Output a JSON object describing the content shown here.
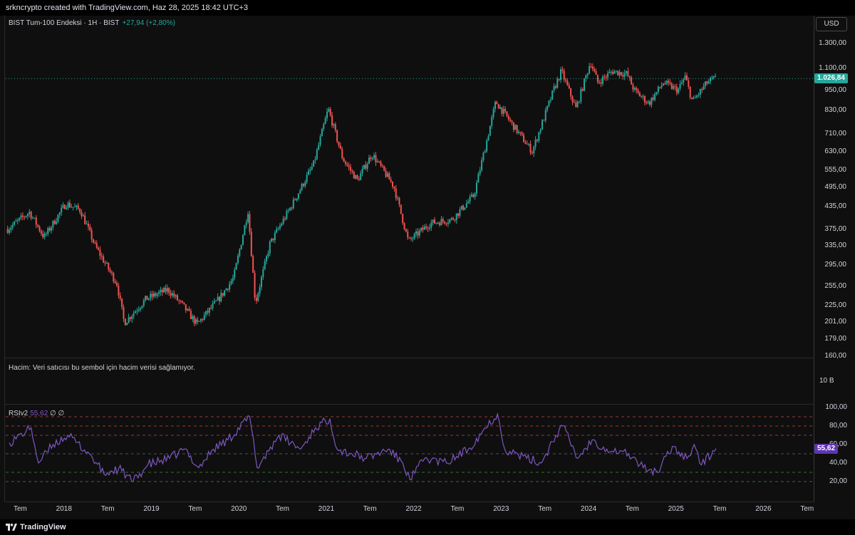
{
  "header": {
    "attribution": "srkncrypto created with TradingView.com, Haz 28, 2025 18:42 UTC+3"
  },
  "legend": {
    "symbol": "BIST Tum-100 Endeksi · 1H · BIST",
    "change": "+27,94 (+2,80%)"
  },
  "currency_button": "USD",
  "price_axis": {
    "ticks": [
      "1.300,00",
      "1.100,00",
      "950,00",
      "830,00",
      "710,00",
      "630,00",
      "555,00",
      "495,00",
      "435,00",
      "375,00",
      "335,00",
      "295,00",
      "255,00",
      "225,00",
      "201,00",
      "179,00",
      "160,00"
    ],
    "last_price_label": "1.026,84"
  },
  "volume_pane": {
    "message": "Hacim: Veri satıcısı bu sembol için hacim verisi sağlamıyor.",
    "tick": "10 B"
  },
  "rsi_pane": {
    "label": "RSIv2",
    "value": "55,62",
    "extra": "∅ ∅",
    "ticks": [
      "100,00",
      "80,00",
      "60,00",
      "40,00",
      "20,00"
    ],
    "last_value_label": "55,62"
  },
  "time_axis": [
    "Tem",
    "2018",
    "Tem",
    "2019",
    "Tem",
    "2020",
    "Tem",
    "2021",
    "Tem",
    "2022",
    "Tem",
    "2023",
    "Tem",
    "2024",
    "Tem",
    "2025",
    "Tem",
    "2026",
    "Tem"
  ],
  "footer": {
    "brand": "TradingView"
  },
  "colors": {
    "up": "#26a69a",
    "down": "#ef5350",
    "rsi": "#7e57c2",
    "last_price": "#26a69a",
    "background": "#0f0f0f"
  },
  "chart_data": [
    {
      "type": "candlestick",
      "title": "BIST Tum-100 Endeksi · 1H · BIST",
      "scale": "log",
      "y_axis_ticks": [
        1300,
        1100,
        950,
        830,
        710,
        630,
        555,
        495,
        435,
        375,
        335,
        295,
        255,
        225,
        201,
        179,
        160
      ],
      "last_price": 1026.84,
      "series_anchor_points": [
        {
          "x": "2017-05",
          "y": 375
        },
        {
          "x": "2017-08",
          "y": 420
        },
        {
          "x": "2017-10",
          "y": 355
        },
        {
          "x": "2018-01",
          "y": 445
        },
        {
          "x": "2018-03",
          "y": 425
        },
        {
          "x": "2018-05",
          "y": 335
        },
        {
          "x": "2018-08",
          "y": 260
        },
        {
          "x": "2018-09",
          "y": 200
        },
        {
          "x": "2018-12",
          "y": 235
        },
        {
          "x": "2019-03",
          "y": 250
        },
        {
          "x": "2019-05",
          "y": 225
        },
        {
          "x": "2019-07",
          "y": 198
        },
        {
          "x": "2019-10",
          "y": 235
        },
        {
          "x": "2019-12",
          "y": 270
        },
        {
          "x": "2020-02",
          "y": 425
        },
        {
          "x": "2020-03",
          "y": 228
        },
        {
          "x": "2020-05",
          "y": 340
        },
        {
          "x": "2020-08",
          "y": 440
        },
        {
          "x": "2020-11",
          "y": 580
        },
        {
          "x": "2021-01",
          "y": 840
        },
        {
          "x": "2021-03",
          "y": 600
        },
        {
          "x": "2021-05",
          "y": 520
        },
        {
          "x": "2021-07",
          "y": 620
        },
        {
          "x": "2021-10",
          "y": 500
        },
        {
          "x": "2021-12",
          "y": 345
        },
        {
          "x": "2022-03",
          "y": 390
        },
        {
          "x": "2022-06",
          "y": 400
        },
        {
          "x": "2022-09",
          "y": 470
        },
        {
          "x": "2022-12",
          "y": 880
        },
        {
          "x": "2023-03",
          "y": 720
        },
        {
          "x": "2023-05",
          "y": 630
        },
        {
          "x": "2023-08",
          "y": 960
        },
        {
          "x": "2023-09",
          "y": 1080
        },
        {
          "x": "2023-11",
          "y": 840
        },
        {
          "x": "2024-01",
          "y": 1150
        },
        {
          "x": "2024-02",
          "y": 1000
        },
        {
          "x": "2024-04",
          "y": 1080
        },
        {
          "x": "2024-06",
          "y": 1060
        },
        {
          "x": "2024-07",
          "y": 950
        },
        {
          "x": "2024-09",
          "y": 870
        },
        {
          "x": "2024-11",
          "y": 1000
        },
        {
          "x": "2025-01",
          "y": 950
        },
        {
          "x": "2025-02",
          "y": 1040
        },
        {
          "x": "2025-03",
          "y": 880
        },
        {
          "x": "2025-05",
          "y": 1000
        },
        {
          "x": "2025-06",
          "y": 1026.84
        }
      ]
    },
    {
      "type": "line",
      "title": "RSIv2",
      "ylim": [
        0,
        100
      ],
      "y_axis_ticks": [
        100,
        80,
        60,
        40,
        20
      ],
      "reference_lines": [
        90,
        80,
        70,
        50,
        30,
        20
      ],
      "last_value": 55.62,
      "series": [
        {
          "values": [
            {
              "x": "2017-05",
              "y": 62
            },
            {
              "x": "2017-08",
              "y": 78
            },
            {
              "x": "2017-09",
              "y": 40
            },
            {
              "x": "2017-11",
              "y": 60
            },
            {
              "x": "2018-01",
              "y": 70
            },
            {
              "x": "2018-04",
              "y": 50
            },
            {
              "x": "2018-06",
              "y": 28
            },
            {
              "x": "2018-08",
              "y": 34
            },
            {
              "x": "2018-10",
              "y": 20
            },
            {
              "x": "2018-12",
              "y": 38
            },
            {
              "x": "2019-03",
              "y": 45
            },
            {
              "x": "2019-05",
              "y": 55
            },
            {
              "x": "2019-07",
              "y": 35
            },
            {
              "x": "2019-09",
              "y": 55
            },
            {
              "x": "2019-11",
              "y": 65
            },
            {
              "x": "2020-02",
              "y": 90
            },
            {
              "x": "2020-03",
              "y": 35
            },
            {
              "x": "2020-06",
              "y": 70
            },
            {
              "x": "2020-09",
              "y": 55
            },
            {
              "x": "2020-11",
              "y": 78
            },
            {
              "x": "2021-01",
              "y": 88
            },
            {
              "x": "2021-02",
              "y": 55
            },
            {
              "x": "2021-04",
              "y": 50
            },
            {
              "x": "2021-06",
              "y": 45
            },
            {
              "x": "2021-09",
              "y": 55
            },
            {
              "x": "2021-11",
              "y": 40
            },
            {
              "x": "2021-12",
              "y": 22
            },
            {
              "x": "2022-02",
              "y": 45
            },
            {
              "x": "2022-05",
              "y": 40
            },
            {
              "x": "2022-08",
              "y": 55
            },
            {
              "x": "2022-10",
              "y": 75
            },
            {
              "x": "2022-12",
              "y": 93
            },
            {
              "x": "2023-01",
              "y": 55
            },
            {
              "x": "2023-04",
              "y": 45
            },
            {
              "x": "2023-06",
              "y": 40
            },
            {
              "x": "2023-08",
              "y": 70
            },
            {
              "x": "2023-09",
              "y": 80
            },
            {
              "x": "2023-11",
              "y": 45
            },
            {
              "x": "2024-01",
              "y": 65
            },
            {
              "x": "2024-03",
              "y": 55
            },
            {
              "x": "2024-06",
              "y": 50
            },
            {
              "x": "2024-08",
              "y": 35
            },
            {
              "x": "2024-10",
              "y": 30
            },
            {
              "x": "2024-12",
              "y": 58
            },
            {
              "x": "2025-02",
              "y": 45
            },
            {
              "x": "2025-03",
              "y": 60
            },
            {
              "x": "2025-04",
              "y": 38
            },
            {
              "x": "2025-06",
              "y": 55.62
            }
          ]
        }
      ]
    }
  ]
}
